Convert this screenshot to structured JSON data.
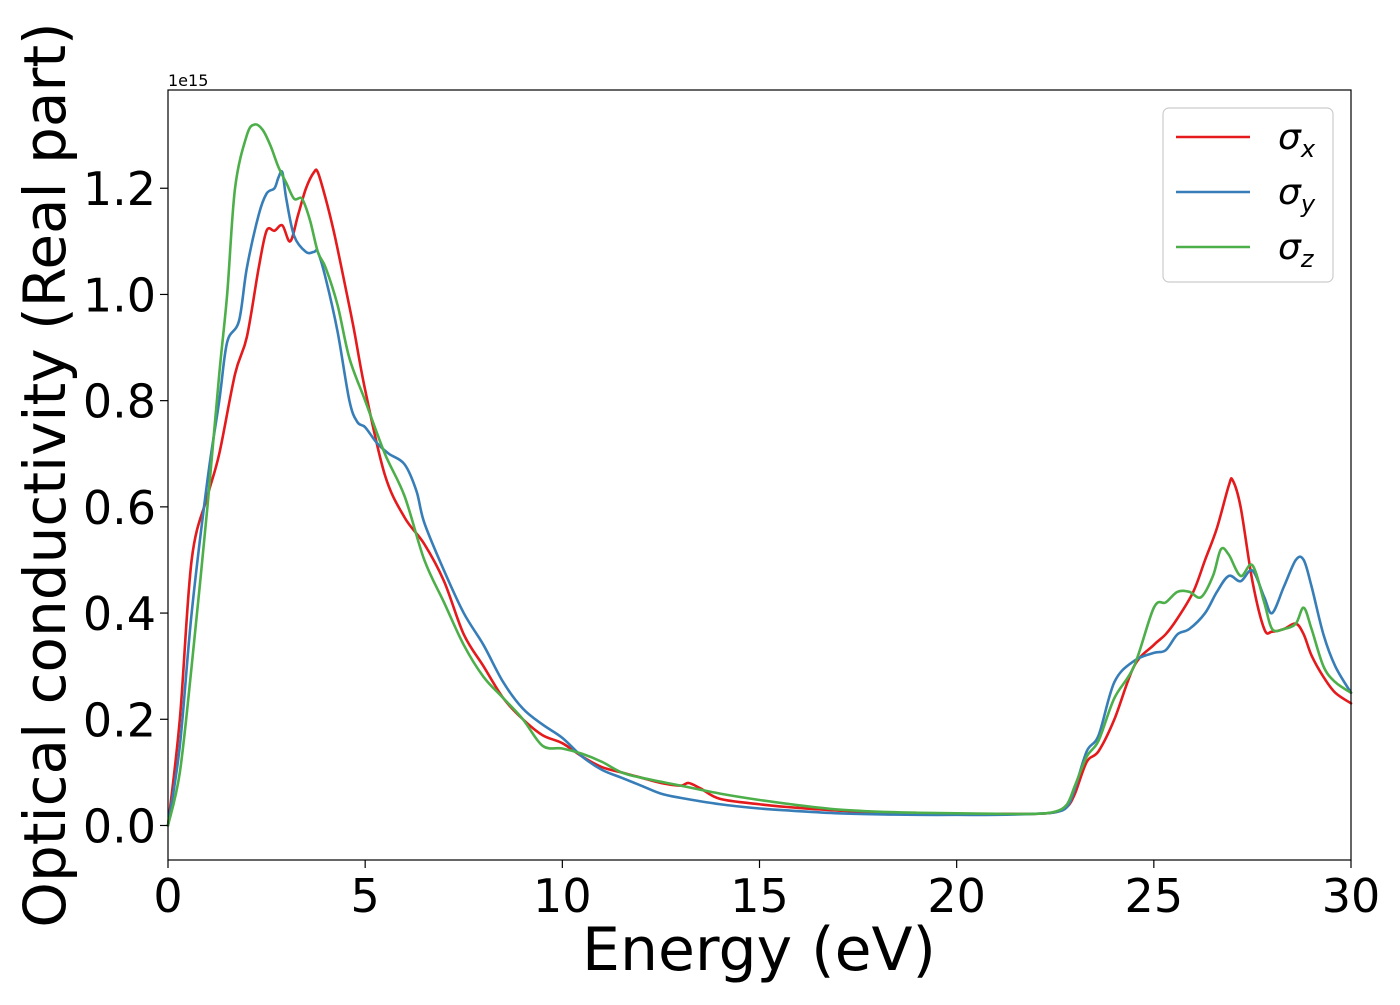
{
  "chart_data": {
    "type": "line",
    "xlabel": "Energy (eV)",
    "ylabel": "Optical conductivity (Real part)",
    "y_multiplier_label": "1e15",
    "xlim": [
      0,
      30
    ],
    "ylim": [
      -0.065,
      1.385
    ],
    "xticks": [
      0,
      5,
      10,
      15,
      20,
      25,
      30
    ],
    "yticks": [
      0.0,
      0.2,
      0.4,
      0.6,
      0.8,
      1.0,
      1.2
    ],
    "ytick_labels": [
      "0.0",
      "0.2",
      "0.4",
      "0.6",
      "0.8",
      "1.0",
      "1.2"
    ],
    "grid": false,
    "legend_position": "top-right",
    "series": [
      {
        "name": "σ",
        "subscript": "x",
        "color": "#e41a1c",
        "x": [
          0,
          0.3,
          0.6,
          1.0,
          1.3,
          1.7,
          2.0,
          2.3,
          2.5,
          2.7,
          2.9,
          3.1,
          3.3,
          3.5,
          3.7,
          3.8,
          4.0,
          4.2,
          4.4,
          4.7,
          5.0,
          5.5,
          6.0,
          6.5,
          7.0,
          7.5,
          8.0,
          8.5,
          9.0,
          9.5,
          10.0,
          10.5,
          11.0,
          11.5,
          12.0,
          12.5,
          13.0,
          13.2,
          13.5,
          14.0,
          15.0,
          16.0,
          17.0,
          18.0,
          19.0,
          20.0,
          21.0,
          22.0,
          22.5,
          22.8,
          23.0,
          23.3,
          23.6,
          24.0,
          24.5,
          25.0,
          25.3,
          25.6,
          26.0,
          26.3,
          26.6,
          26.9,
          27.0,
          27.2,
          27.5,
          27.8,
          28.0,
          28.3,
          28.6,
          28.8,
          29.0,
          29.3,
          29.6,
          30.0
        ],
        "values": [
          0.0,
          0.2,
          0.5,
          0.62,
          0.7,
          0.85,
          0.92,
          1.05,
          1.12,
          1.12,
          1.13,
          1.1,
          1.15,
          1.2,
          1.23,
          1.23,
          1.18,
          1.12,
          1.05,
          0.94,
          0.82,
          0.66,
          0.58,
          0.53,
          0.46,
          0.36,
          0.3,
          0.24,
          0.2,
          0.17,
          0.155,
          0.13,
          0.11,
          0.1,
          0.09,
          0.08,
          0.075,
          0.08,
          0.07,
          0.05,
          0.04,
          0.033,
          0.028,
          0.024,
          0.022,
          0.022,
          0.022,
          0.022,
          0.025,
          0.035,
          0.06,
          0.12,
          0.14,
          0.2,
          0.3,
          0.34,
          0.36,
          0.39,
          0.44,
          0.5,
          0.56,
          0.64,
          0.65,
          0.6,
          0.46,
          0.37,
          0.365,
          0.37,
          0.38,
          0.36,
          0.32,
          0.28,
          0.25,
          0.23
        ]
      },
      {
        "name": "σ",
        "subscript": "y",
        "color": "#377eb8",
        "x": [
          0,
          0.3,
          0.6,
          1.0,
          1.3,
          1.5,
          1.8,
          2.0,
          2.3,
          2.5,
          2.7,
          2.8,
          2.9,
          3.0,
          3.2,
          3.5,
          3.7,
          3.8,
          4.0,
          4.3,
          4.6,
          4.8,
          5.0,
          5.3,
          5.6,
          6.0,
          6.3,
          6.5,
          7.0,
          7.5,
          8.0,
          8.5,
          9.0,
          9.5,
          10.0,
          10.5,
          11.0,
          11.5,
          12.0,
          12.5,
          13.0,
          14.0,
          15.0,
          16.0,
          17.0,
          18.0,
          19.0,
          20.0,
          21.0,
          22.0,
          22.5,
          22.8,
          23.0,
          23.3,
          23.6,
          24.0,
          24.5,
          25.0,
          25.3,
          25.6,
          25.9,
          26.3,
          26.6,
          26.9,
          27.2,
          27.5,
          27.8,
          28.0,
          28.3,
          28.6,
          28.8,
          29.0,
          29.3,
          29.6,
          30.0
        ],
        "values": [
          0.0,
          0.15,
          0.4,
          0.65,
          0.8,
          0.91,
          0.95,
          1.05,
          1.15,
          1.19,
          1.2,
          1.22,
          1.23,
          1.18,
          1.11,
          1.08,
          1.08,
          1.08,
          1.03,
          0.93,
          0.8,
          0.76,
          0.75,
          0.72,
          0.7,
          0.68,
          0.63,
          0.57,
          0.48,
          0.4,
          0.34,
          0.27,
          0.22,
          0.19,
          0.165,
          0.13,
          0.105,
          0.09,
          0.075,
          0.06,
          0.052,
          0.04,
          0.032,
          0.027,
          0.023,
          0.021,
          0.02,
          0.02,
          0.02,
          0.022,
          0.025,
          0.035,
          0.07,
          0.14,
          0.17,
          0.27,
          0.31,
          0.325,
          0.33,
          0.36,
          0.37,
          0.4,
          0.44,
          0.47,
          0.46,
          0.48,
          0.43,
          0.4,
          0.45,
          0.5,
          0.5,
          0.45,
          0.36,
          0.3,
          0.25
        ]
      },
      {
        "name": "σ",
        "subscript": "z",
        "color": "#4daf4a",
        "x": [
          0,
          0.3,
          0.6,
          1.0,
          1.3,
          1.5,
          1.7,
          2.0,
          2.2,
          2.4,
          2.6,
          2.8,
          3.0,
          3.2,
          3.4,
          3.6,
          3.8,
          4.0,
          4.3,
          4.6,
          5.0,
          5.5,
          6.0,
          6.5,
          7.0,
          7.5,
          8.0,
          8.5,
          9.0,
          9.5,
          10.0,
          10.5,
          11.0,
          11.5,
          12.0,
          13.0,
          14.0,
          15.0,
          16.0,
          17.0,
          18.0,
          19.0,
          20.0,
          21.0,
          22.0,
          22.5,
          22.8,
          23.0,
          23.3,
          23.6,
          24.0,
          24.5,
          25.0,
          25.3,
          25.6,
          25.9,
          26.2,
          26.5,
          26.7,
          26.9,
          27.2,
          27.5,
          27.8,
          28.0,
          28.3,
          28.6,
          28.8,
          29.0,
          29.3,
          29.6,
          30.0
        ],
        "values": [
          0.0,
          0.1,
          0.3,
          0.6,
          0.85,
          1.0,
          1.2,
          1.3,
          1.32,
          1.31,
          1.28,
          1.24,
          1.21,
          1.18,
          1.18,
          1.14,
          1.08,
          1.05,
          0.98,
          0.88,
          0.8,
          0.7,
          0.62,
          0.5,
          0.42,
          0.34,
          0.28,
          0.24,
          0.2,
          0.15,
          0.145,
          0.135,
          0.12,
          0.1,
          0.09,
          0.075,
          0.06,
          0.048,
          0.038,
          0.03,
          0.026,
          0.024,
          0.023,
          0.022,
          0.022,
          0.026,
          0.04,
          0.075,
          0.13,
          0.16,
          0.24,
          0.3,
          0.41,
          0.42,
          0.44,
          0.44,
          0.43,
          0.47,
          0.52,
          0.51,
          0.47,
          0.49,
          0.42,
          0.37,
          0.37,
          0.38,
          0.41,
          0.37,
          0.3,
          0.27,
          0.25
        ]
      }
    ]
  }
}
